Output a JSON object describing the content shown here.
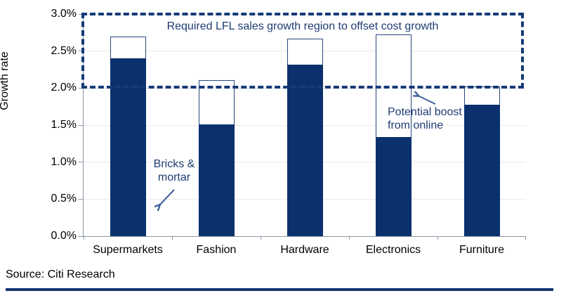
{
  "chart_data": {
    "type": "bar",
    "stacked": true,
    "title": "Required LFL sales growth region to offset cost growth",
    "ylabel": "Growth rate",
    "categories": [
      "Supermarkets",
      "Fashion",
      "Hardware",
      "Electronics",
      "Furniture"
    ],
    "series": [
      {
        "name": "Bricks & mortar",
        "values": [
          2.4,
          1.51,
          2.32,
          1.34,
          1.78
        ]
      },
      {
        "name": "Potential boost from online",
        "values": [
          0.3,
          0.6,
          0.35,
          1.38,
          0.24
        ]
      }
    ],
    "totals": [
      2.7,
      2.11,
      2.67,
      2.72,
      2.02
    ],
    "ylim": [
      0,
      3.0
    ],
    "ytick_step": 0.5,
    "yticks": [
      "0.0%",
      "0.5%",
      "1.0%",
      "1.5%",
      "2.0%",
      "2.5%",
      "3.0%"
    ],
    "grid": "horizontal",
    "region": {
      "label": "Required LFL sales growth region to offset cost growth",
      "from": 2.0,
      "to": 3.0
    },
    "legend_position": "none"
  },
  "annotations": {
    "bricks": {
      "line1": "Bricks &",
      "line2": "mortar"
    },
    "online": {
      "line1": "Potential boost",
      "line2": "from online"
    }
  },
  "source": "Source: Citi Research",
  "colors": {
    "navy": "#0a316e",
    "navy_border": "#27497c",
    "dash": "#153a78",
    "text_navy": "#1e3c74",
    "arrow": "#3e5f9c",
    "grid": "#e9e9e9",
    "axis": "#8a96a3",
    "rule": "#16356c"
  }
}
